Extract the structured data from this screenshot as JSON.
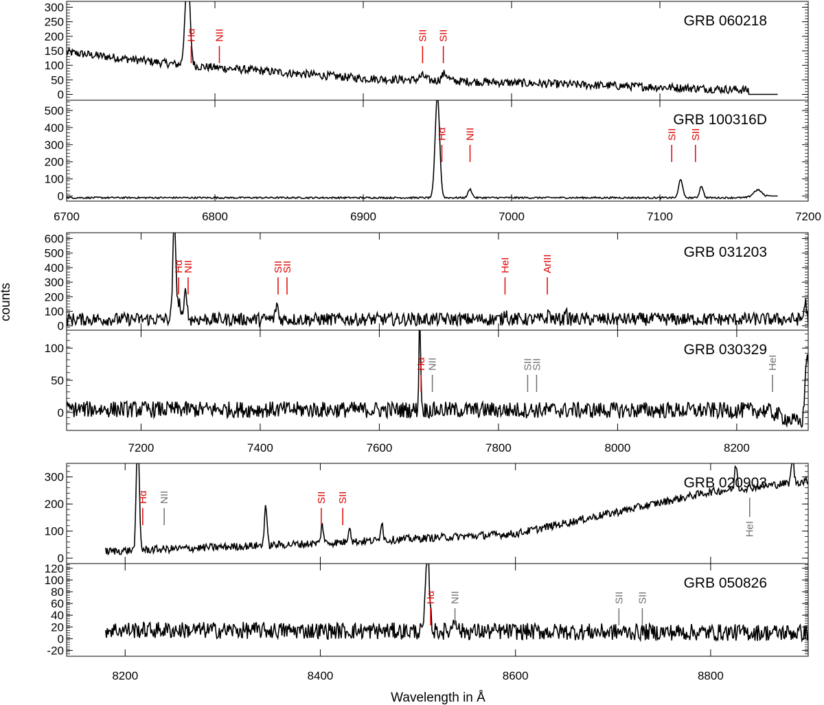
{
  "chart_data": {
    "type": "line",
    "ylabel": "counts",
    "xlabel": "Wavelength in Å",
    "colors": {
      "emission_line": "#e00000",
      "undetected_line": "#707070",
      "spectrum": "#000000"
    },
    "groups": [
      {
        "xlim": [
          6700,
          7200
        ],
        "x_ticks": [
          "6700",
          "6800",
          "6900",
          "7000",
          "7100",
          "7200"
        ],
        "panels": [
          {
            "title": "GRB 060218",
            "ylim": [
              -20,
              320
            ],
            "y_ticks": [
              "0",
              "50",
              "100",
              "150",
              "200",
              "250",
              "300"
            ],
            "series": {
              "x_range": [
                6700,
                7180
              ],
              "continuum": [
                [
                  6700,
                  145
                ],
                [
                  6780,
                  100
                ],
                [
                  6900,
                  55
                ],
                [
                  7100,
                  25
                ],
                [
                  7160,
                  15
                ]
              ],
              "noise": 9,
              "dropout_after": 7160,
              "peaks": [
                [
                  6781.5,
                  330,
                  1.6
                ],
                [
                  6955,
                  25,
                  2
                ],
                [
                  6940,
                  15,
                  2
                ]
              ]
            },
            "lines": [
              {
                "label": "Hα",
                "x": 6784,
                "color": "#e00000"
              },
              {
                "label": "NII",
                "x": 6803,
                "color": "#e00000"
              },
              {
                "label": "SII",
                "x": 6940,
                "color": "#e00000"
              },
              {
                "label": "SII",
                "x": 6954,
                "color": "#e00000"
              }
            ]
          },
          {
            "title": "GRB 100316D",
            "ylim": [
              -30,
              560
            ],
            "y_ticks": [
              "0",
              "100",
              "200",
              "300",
              "400",
              "500"
            ],
            "series": {
              "x_range": [
                6700,
                7180
              ],
              "continuum": [
                [
                  6700,
                  -10
                ],
                [
                  7180,
                  -10
                ]
              ],
              "noise": 3,
              "dropout_after": 7172,
              "peaks": [
                [
                  6950,
                  600,
                  1.5
                ],
                [
                  6972,
                  50,
                  1.3
                ],
                [
                  7114,
                  110,
                  1.3
                ],
                [
                  7128,
                  70,
                  1.2
                ],
                [
                  7166,
                  45,
                  3
                ]
              ]
            },
            "lines": [
              {
                "label": "Hα",
                "x": 6953,
                "color": "#e00000"
              },
              {
                "label": "NII",
                "x": 6972,
                "color": "#e00000"
              },
              {
                "label": "SII",
                "x": 7108,
                "color": "#e00000"
              },
              {
                "label": "SII",
                "x": 7124,
                "color": "#e00000"
              }
            ]
          }
        ]
      },
      {
        "xlim": [
          7075,
          8320
        ],
        "x_ticks": [
          "7200",
          "7400",
          "7600",
          "7800",
          "8000",
          "8200"
        ],
        "panels": [
          {
            "title": "GRB 031203",
            "ylim": [
              -30,
              640
            ],
            "y_ticks": [
              "0",
              "100",
              "200",
              "300",
              "400",
              "500",
              "600"
            ],
            "series": {
              "x_range": [
                7075,
                8320
              ],
              "continuum": [
                [
                  7075,
                  45
                ],
                [
                  8320,
                  45
                ]
              ],
              "noise": 28,
              "dropout_after": 99999,
              "peaks": [
                [
                  7256,
                  700,
                  2.5
                ],
                [
                  7264,
                  120,
                  2
                ],
                [
                  7275,
                  230,
                  2
                ],
                [
                  7428,
                  110,
                  2
                ],
                [
                  7812,
                  60,
                  2
                ],
                [
                  7885,
                  50,
                  2
                ],
                [
                  7913,
                  100,
                  1.2
                ],
                [
                  8315,
                  120,
                  2
                ]
              ]
            },
            "lines": [
              {
                "label": "Hα",
                "x": 7263,
                "color": "#e00000"
              },
              {
                "label": "NII",
                "x": 7279,
                "color": "#e00000"
              },
              {
                "label": "SII",
                "x": 7430,
                "color": "#e00000"
              },
              {
                "label": "SII",
                "x": 7445,
                "color": "#e00000"
              },
              {
                "label": "HeI",
                "x": 7811,
                "color": "#e00000"
              },
              {
                "label": "ArIII",
                "x": 7882,
                "color": "#e00000"
              }
            ]
          },
          {
            "title": "GRB 030329",
            "ylim": [
              -28,
              128
            ],
            "y_ticks": [
              "0",
              "50",
              "100"
            ],
            "series": {
              "x_range": [
                7075,
                8320
              ],
              "continuum": [
                [
                  7075,
                  5
                ],
                [
                  8250,
                  3
                ],
                [
                  8300,
                  -15
                ]
              ],
              "noise": 8,
              "dropout_after": 99999,
              "peaks": [
                [
                  7668,
                  140,
                  1.5
                ],
                [
                  8318,
                  110,
                  3
                ]
              ]
            },
            "lines": [
              {
                "label": "Hα",
                "x": 7670,
                "color": "#e00000"
              },
              {
                "label": "NII",
                "x": 7689,
                "color": "#707070"
              },
              {
                "label": "SII",
                "x": 7849,
                "color": "#707070"
              },
              {
                "label": "SII",
                "x": 7864,
                "color": "#707070"
              },
              {
                "label": "HeI",
                "x": 8260,
                "color": "#707070"
              }
            ]
          }
        ]
      },
      {
        "xlim": [
          8140,
          8900
        ],
        "x_ticks": [
          "8200",
          "8400",
          "8600",
          "8800"
        ],
        "panels": [
          {
            "title": "GRB 020903",
            "ylim": [
              -20,
              350
            ],
            "y_ticks": [
              "0",
              "100",
              "200",
              "300"
            ],
            "series": {
              "x_range": [
                8180,
                8900
              ],
              "continuum": [
                [
                  8180,
                  25
                ],
                [
                  8400,
                  55
                ],
                [
                  8600,
                  90
                ],
                [
                  8800,
                  245
                ],
                [
                  8900,
                  285
                ]
              ],
              "noise": 9,
              "dropout_after": 99999,
              "peaks": [
                [
                  8213,
                  430,
                  1.5
                ],
                [
                  8344,
                  150,
                  1.3
                ],
                [
                  8402,
                  70,
                  1.3
                ],
                [
                  8430,
                  60,
                  1.3
                ],
                [
                  8463,
                  70,
                  1.3
                ],
                [
                  8826,
                  90,
                  1.3
                ],
                [
                  8884,
                  90,
                  1.3
                ]
              ]
            },
            "lines": [
              {
                "label": "Hα",
                "x": 8218,
                "color": "#e00000"
              },
              {
                "label": "NII",
                "x": 8240,
                "color": "#707070"
              },
              {
                "label": "SII",
                "x": 8401,
                "color": "#e00000"
              },
              {
                "label": "SII",
                "x": 8423,
                "color": "#e00000"
              },
              {
                "label": "HeI",
                "x": 8840,
                "color": "#707070"
              }
            ]
          },
          {
            "title": "GRB 050826",
            "ylim": [
              -30,
              128
            ],
            "y_ticks": [
              "-20",
              "0",
              "20",
              "40",
              "60",
              "80",
              "100",
              "120"
            ],
            "series": {
              "x_range": [
                8180,
                8900
              ],
              "continuum": [
                [
                  8180,
                  15
                ],
                [
                  8900,
                  10
                ]
              ],
              "noise": 9,
              "dropout_after": 99999,
              "peaks": [
                [
                  8510,
                  130,
                  2
                ],
                [
                  8538,
                  25,
                  2
                ]
              ]
            },
            "lines": [
              {
                "label": "Hα",
                "x": 8513,
                "color": "#e00000"
              },
              {
                "label": "NII",
                "x": 8538,
                "color": "#707070"
              },
              {
                "label": "SII",
                "x": 8706,
                "color": "#707070"
              },
              {
                "label": "SII",
                "x": 8730,
                "color": "#707070"
              }
            ]
          }
        ]
      }
    ]
  }
}
